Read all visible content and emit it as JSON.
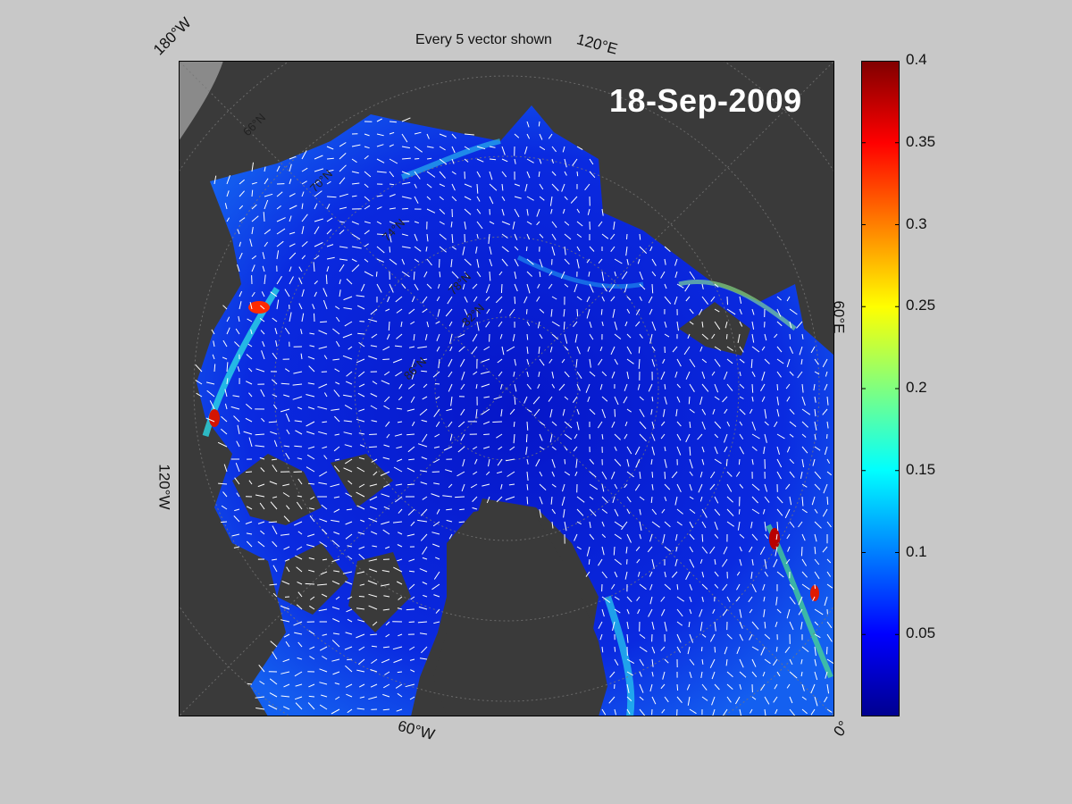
{
  "title": "Every 5 vector shown",
  "date": "18-Sep-2009",
  "map_labels": {
    "top_left": "180°W",
    "top_right": "120°E",
    "right": "60°E",
    "left": "120°W",
    "bottom": "60°W",
    "bottom_right": "0°",
    "parallels": [
      "66°N",
      "70°N",
      "74°N",
      "78°N",
      "82°N",
      "86°N"
    ]
  },
  "colorbar": {
    "colormap": "jet",
    "min": 0,
    "max": 0.4,
    "ticks": [
      "0.4",
      "0.35",
      "0.3",
      "0.25",
      "0.2",
      "0.15",
      "0.1",
      "0.05"
    ]
  },
  "colors": {
    "figure_bg": "#c8c8c8",
    "land": "#3a3a3a",
    "outside_map": "#8a8a8a",
    "ice_low": "#0a1fd6",
    "vector": "#ffffff"
  },
  "icons": [
    "ice-drift-vector-arrow"
  ]
}
